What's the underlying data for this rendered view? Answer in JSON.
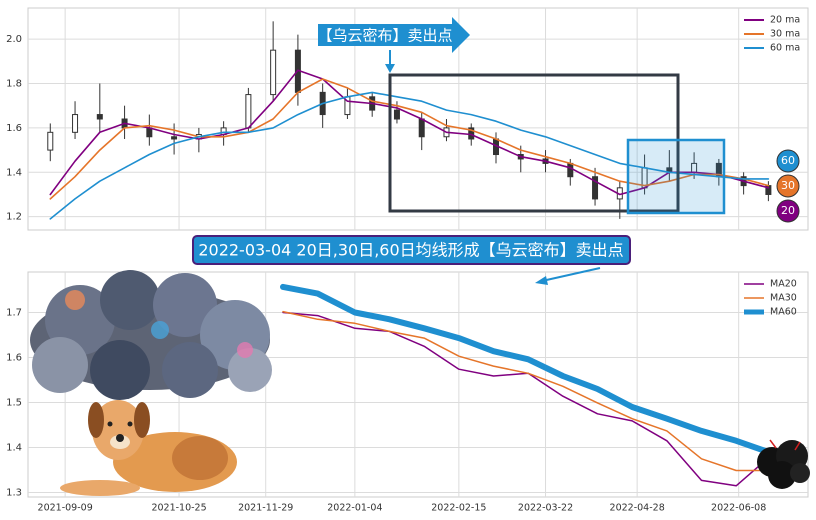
{
  "chart_data": [
    {
      "type": "candlestick",
      "callout": "【乌云密布】卖出点",
      "xlim": [
        "2021-08-25",
        "2022-07-06"
      ],
      "xticks": [
        "2021-09-09",
        "2021-10-25",
        "2021-11-29",
        "2022-01-04",
        "2022-02-15",
        "2022-03-22",
        "2022-04-28",
        "2022-06-08"
      ],
      "ylim": [
        1.14,
        2.14
      ],
      "yticks": [
        {
          "value": 1.2,
          "label": "1.2"
        },
        {
          "value": 1.4,
          "label": "1.4"
        },
        {
          "value": 1.6,
          "label": "1.6"
        },
        {
          "value": 1.8,
          "label": "1.8"
        },
        {
          "value": 2.0,
          "label": "2.0"
        }
      ],
      "grid": true,
      "candle_color": "#333333",
      "x": [
        "2021-09-03",
        "2021-09-13",
        "2021-09-23",
        "2021-10-03",
        "2021-10-13",
        "2021-10-23",
        "2021-11-02",
        "2021-11-12",
        "2021-11-22",
        "2021-12-02",
        "2021-12-12",
        "2021-12-22",
        "2022-01-01",
        "2022-01-11",
        "2022-01-21",
        "2022-01-31",
        "2022-02-10",
        "2022-02-20",
        "2022-03-02",
        "2022-03-12",
        "2022-03-22",
        "2022-04-01",
        "2022-04-11",
        "2022-04-21",
        "2022-05-01",
        "2022-05-11",
        "2022-05-21",
        "2022-05-31",
        "2022-06-10",
        "2022-06-20"
      ],
      "open": [
        1.5,
        1.58,
        1.66,
        1.64,
        1.6,
        1.56,
        1.55,
        1.57,
        1.6,
        1.75,
        1.95,
        1.76,
        1.66,
        1.74,
        1.68,
        1.64,
        1.56,
        1.6,
        1.55,
        1.48,
        1.46,
        1.44,
        1.38,
        1.28,
        1.33,
        1.42,
        1.4,
        1.44,
        1.38,
        1.34
      ],
      "high": [
        1.62,
        1.72,
        1.8,
        1.7,
        1.66,
        1.62,
        1.6,
        1.63,
        1.78,
        2.08,
        2.02,
        1.8,
        1.78,
        1.76,
        1.72,
        1.67,
        1.64,
        1.62,
        1.58,
        1.52,
        1.5,
        1.46,
        1.42,
        1.36,
        1.48,
        1.5,
        1.49,
        1.46,
        1.4,
        1.36
      ],
      "low": [
        1.45,
        1.55,
        1.58,
        1.55,
        1.52,
        1.48,
        1.49,
        1.52,
        1.58,
        1.72,
        1.7,
        1.6,
        1.64,
        1.65,
        1.62,
        1.5,
        1.54,
        1.52,
        1.44,
        1.4,
        1.4,
        1.34,
        1.25,
        1.19,
        1.3,
        1.36,
        1.37,
        1.34,
        1.3,
        1.27
      ],
      "close": [
        1.58,
        1.66,
        1.64,
        1.6,
        1.56,
        1.55,
        1.57,
        1.6,
        1.75,
        1.95,
        1.76,
        1.66,
        1.74,
        1.68,
        1.64,
        1.56,
        1.6,
        1.55,
        1.48,
        1.46,
        1.44,
        1.38,
        1.28,
        1.33,
        1.42,
        1.4,
        1.44,
        1.38,
        1.34,
        1.3
      ],
      "series": [
        {
          "name": "20 ma",
          "badge": "20",
          "color": "#800080",
          "values": [
            1.3,
            1.45,
            1.58,
            1.62,
            1.6,
            1.57,
            1.55,
            1.57,
            1.6,
            1.72,
            1.86,
            1.82,
            1.72,
            1.71,
            1.69,
            1.64,
            1.58,
            1.57,
            1.52,
            1.47,
            1.45,
            1.42,
            1.36,
            1.3,
            1.33,
            1.4,
            1.4,
            1.39,
            1.36,
            1.33
          ]
        },
        {
          "name": "30 ma",
          "badge": "30",
          "color": "#e5752a",
          "values": [
            1.28,
            1.38,
            1.5,
            1.6,
            1.61,
            1.59,
            1.56,
            1.56,
            1.58,
            1.64,
            1.76,
            1.82,
            1.78,
            1.72,
            1.7,
            1.67,
            1.61,
            1.59,
            1.55,
            1.5,
            1.47,
            1.44,
            1.4,
            1.36,
            1.34,
            1.36,
            1.39,
            1.39,
            1.37,
            1.34
          ]
        },
        {
          "name": "60 ma",
          "badge": "60",
          "color": "#1f8fd0",
          "values": [
            1.19,
            1.28,
            1.36,
            1.42,
            1.48,
            1.53,
            1.56,
            1.58,
            1.58,
            1.6,
            1.66,
            1.71,
            1.74,
            1.76,
            1.74,
            1.72,
            1.68,
            1.66,
            1.63,
            1.59,
            1.56,
            1.52,
            1.48,
            1.44,
            1.42,
            1.4,
            1.39,
            1.38,
            1.37,
            1.37
          ]
        }
      ],
      "legend": "upper right"
    },
    {
      "type": "line",
      "title": "2022-03-04 20日,30日,60日均线形成【乌云密布】卖出点",
      "xlim": [
        "2021-08-25",
        "2022-07-06"
      ],
      "xticks": [
        "2021-09-09",
        "2021-10-25",
        "2021-11-29",
        "2022-01-04",
        "2022-02-15",
        "2022-03-22",
        "2022-04-28",
        "2022-06-08"
      ],
      "ylim": [
        1.29,
        1.79
      ],
      "yticks": [
        1.3,
        1.4,
        1.5,
        1.6,
        1.7
      ],
      "grid": true,
      "x": [
        "2021-12-06",
        "2021-12-20",
        "2022-01-04",
        "2022-01-18",
        "2022-02-01",
        "2022-02-15",
        "2022-03-01",
        "2022-03-15",
        "2022-03-29",
        "2022-04-12",
        "2022-04-26",
        "2022-05-10",
        "2022-05-24",
        "2022-06-07",
        "2022-06-21"
      ],
      "series": [
        {
          "name": "MA20",
          "color": "#800080",
          "width": 1.5,
          "values": [
            1.7,
            1.693,
            1.665,
            1.658,
            1.625,
            1.574,
            1.559,
            1.565,
            1.514,
            1.475,
            1.459,
            1.415,
            1.327,
            1.315,
            1.382
          ]
        },
        {
          "name": "MA30",
          "color": "#e5752a",
          "width": 1.5,
          "values": [
            1.702,
            1.685,
            1.676,
            1.658,
            1.643,
            1.603,
            1.581,
            1.565,
            1.536,
            1.499,
            1.464,
            1.437,
            1.375,
            1.349,
            1.349
          ]
        },
        {
          "name": "MA60",
          "color": "#1f8fd0",
          "width": 6,
          "values": [
            1.757,
            1.742,
            1.7,
            1.685,
            1.665,
            1.643,
            1.614,
            1.596,
            1.559,
            1.53,
            1.49,
            1.464,
            1.437,
            1.415,
            1.388
          ]
        }
      ],
      "legend": "upper right"
    }
  ]
}
